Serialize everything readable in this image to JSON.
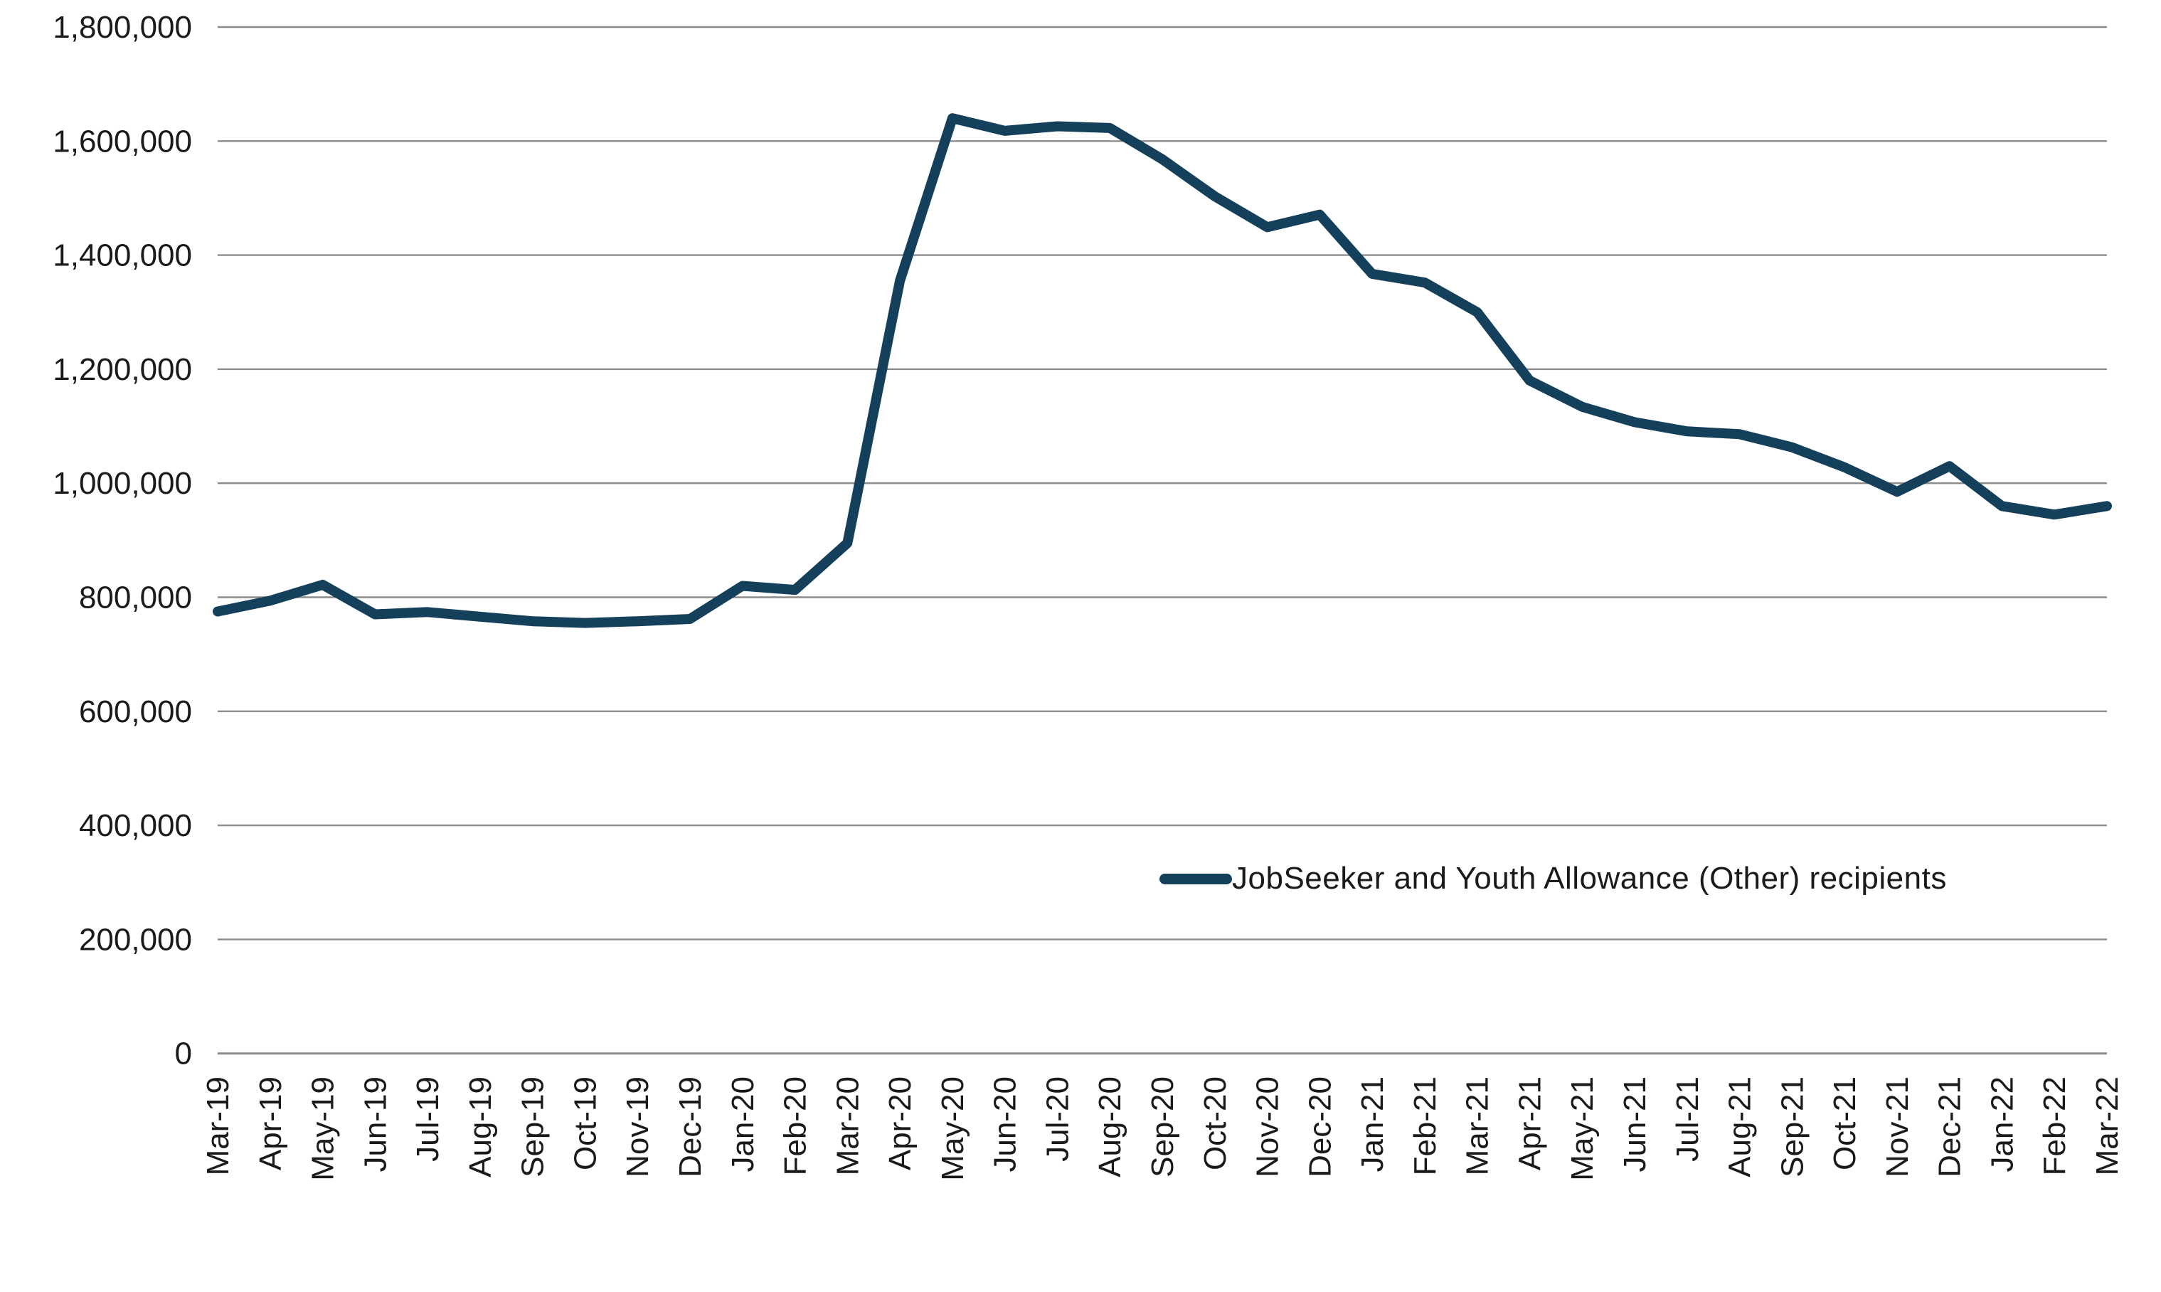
{
  "page": {
    "background": "#ffffff",
    "title": ""
  },
  "chart_data": {
    "type": "line",
    "title": "",
    "xlabel": "",
    "ylabel": "",
    "categories": [
      "Mar-19",
      "Apr-19",
      "May-19",
      "Jun-19",
      "Jul-19",
      "Aug-19",
      "Sep-19",
      "Oct-19",
      "Nov-19",
      "Dec-19",
      "Jan-20",
      "Feb-20",
      "Mar-20",
      "Apr-20",
      "May-20",
      "Jun-20",
      "Jul-20",
      "Aug-20",
      "Sep-20",
      "Oct-20",
      "Nov-20",
      "Dec-20",
      "Jan-21",
      "Feb-21",
      "Mar-21",
      "Apr-21",
      "May-21",
      "Jun-21",
      "Jul-21",
      "Aug-21",
      "Sep-21",
      "Oct-21",
      "Nov-21",
      "Dec-21",
      "Jan-22",
      "Feb-22",
      "Mar-22"
    ],
    "series": [
      {
        "name": "JobSeeker and Youth Allowance (Other) recipients",
        "color": "#14405C",
        "values": [
          775000,
          794000,
          822000,
          770000,
          774000,
          766000,
          758000,
          755000,
          758000,
          762000,
          820000,
          813000,
          895000,
          1355000,
          1640000,
          1618000,
          1626000,
          1623000,
          1568000,
          1503000,
          1449000,
          1471000,
          1367000,
          1352000,
          1300000,
          1180000,
          1134000,
          1107000,
          1091000,
          1086000,
          1063000,
          1028000,
          985000,
          1030000,
          960000,
          945000,
          960000
        ]
      }
    ],
    "y_axis": {
      "min": 0,
      "max": 1800000,
      "step": 200000,
      "tick_labels": [
        "0",
        "200,000",
        "400,000",
        "600,000",
        "800,000",
        "1,000,000",
        "1,200,000",
        "1,400,000",
        "1,600,000",
        "1,800,000"
      ]
    },
    "x_axis": {
      "label_rotation_degrees": -90
    },
    "grid": {
      "show": true,
      "color": "#8C8C8C"
    },
    "legend": {
      "position": "inside-lower-right",
      "entries": [
        "JobSeeker and Youth Allowance (Other) recipients"
      ]
    },
    "text_color": "#1a1a1a"
  }
}
